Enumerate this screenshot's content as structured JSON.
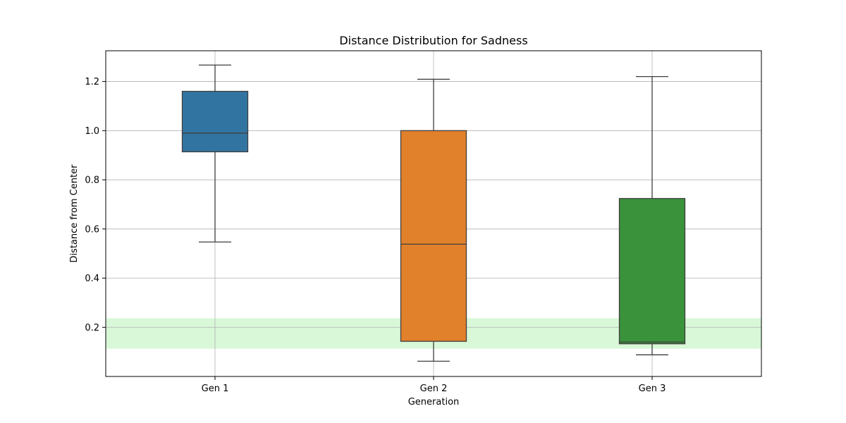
{
  "chart_data": {
    "type": "box",
    "title": "Distance Distribution for Sadness",
    "xlabel": "Generation",
    "ylabel": "Distance from Center",
    "ylim": [
      0.0,
      1.325
    ],
    "yticks": [
      0.2,
      0.4,
      0.6,
      0.8,
      1.0,
      1.2
    ],
    "ytick_labels": [
      "0.2",
      "0.4",
      "0.6",
      "0.8",
      "1.0",
      "1.2"
    ],
    "grid": true,
    "categories": [
      "Gen 1",
      "Gen 2",
      "Gen 3"
    ],
    "boxes": [
      {
        "category": "Gen 1",
        "whisker_low": 0.547,
        "q1": 0.914,
        "median": 0.99,
        "q3": 1.16,
        "whisker_high": 1.267,
        "color": "#3274a1"
      },
      {
        "category": "Gen 2",
        "whisker_low": 0.062,
        "q1": 0.143,
        "median": 0.538,
        "q3": 1.0,
        "whisker_high": 1.209,
        "color": "#e1812c"
      },
      {
        "category": "Gen 3",
        "whisker_low": 0.088,
        "q1": 0.133,
        "median": 0.14,
        "q3": 0.724,
        "whisker_high": 1.22,
        "color": "#3a923a"
      }
    ],
    "highlight_band": {
      "y_low": 0.113,
      "y_high": 0.237,
      "color": "#c8f5c8"
    }
  }
}
